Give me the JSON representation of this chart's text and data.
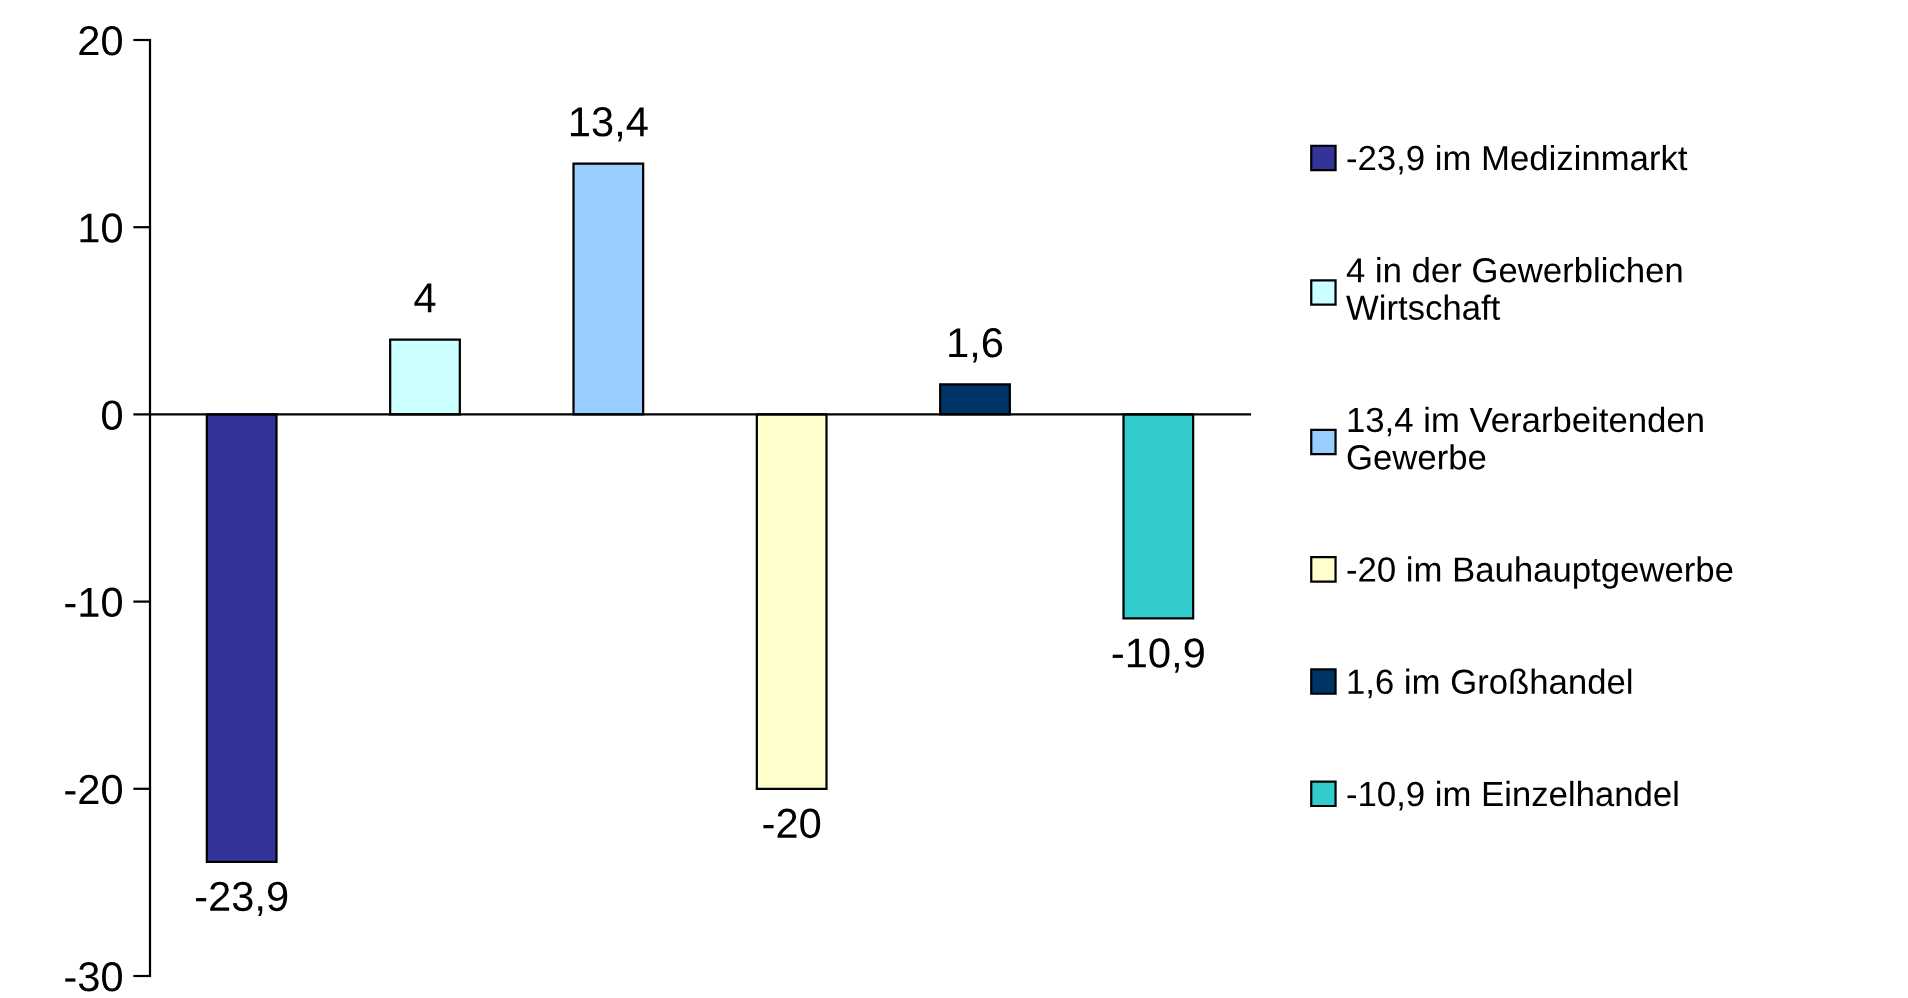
{
  "chart_data": {
    "type": "bar",
    "categories": [
      null
    ],
    "ylim": [
      -30,
      20
    ],
    "yticks": [
      -30,
      -20,
      -10,
      0,
      10,
      20
    ],
    "legend": "right",
    "series": [
      {
        "name": "-23,9 im Medizinmarkt",
        "color": "#333399",
        "values": [
          -23.9
        ],
        "value_labels": [
          "-23,9"
        ]
      },
      {
        "name": "4 in der Gewerblichen Wirtschaft",
        "color": "#ccffff",
        "values": [
          4
        ],
        "value_labels": [
          "4"
        ]
      },
      {
        "name": "13,4 im Verarbeitenden Gewerbe",
        "color": "#99ccff",
        "values": [
          13.4
        ],
        "value_labels": [
          "13,4"
        ]
      },
      {
        "name": "-20 im Bauhauptgewerbe",
        "color": "#ffffcc",
        "values": [
          -20
        ],
        "value_labels": [
          "-20"
        ]
      },
      {
        "name": "1,6 im Großhandel",
        "color": "#003366",
        "values": [
          1.6
        ],
        "value_labels": [
          "1,6"
        ]
      },
      {
        "name": "-10,9 im Einzelhandel",
        "color": "#33cccc",
        "values": [
          -10.9
        ],
        "value_labels": [
          "-10,9"
        ]
      }
    ]
  }
}
